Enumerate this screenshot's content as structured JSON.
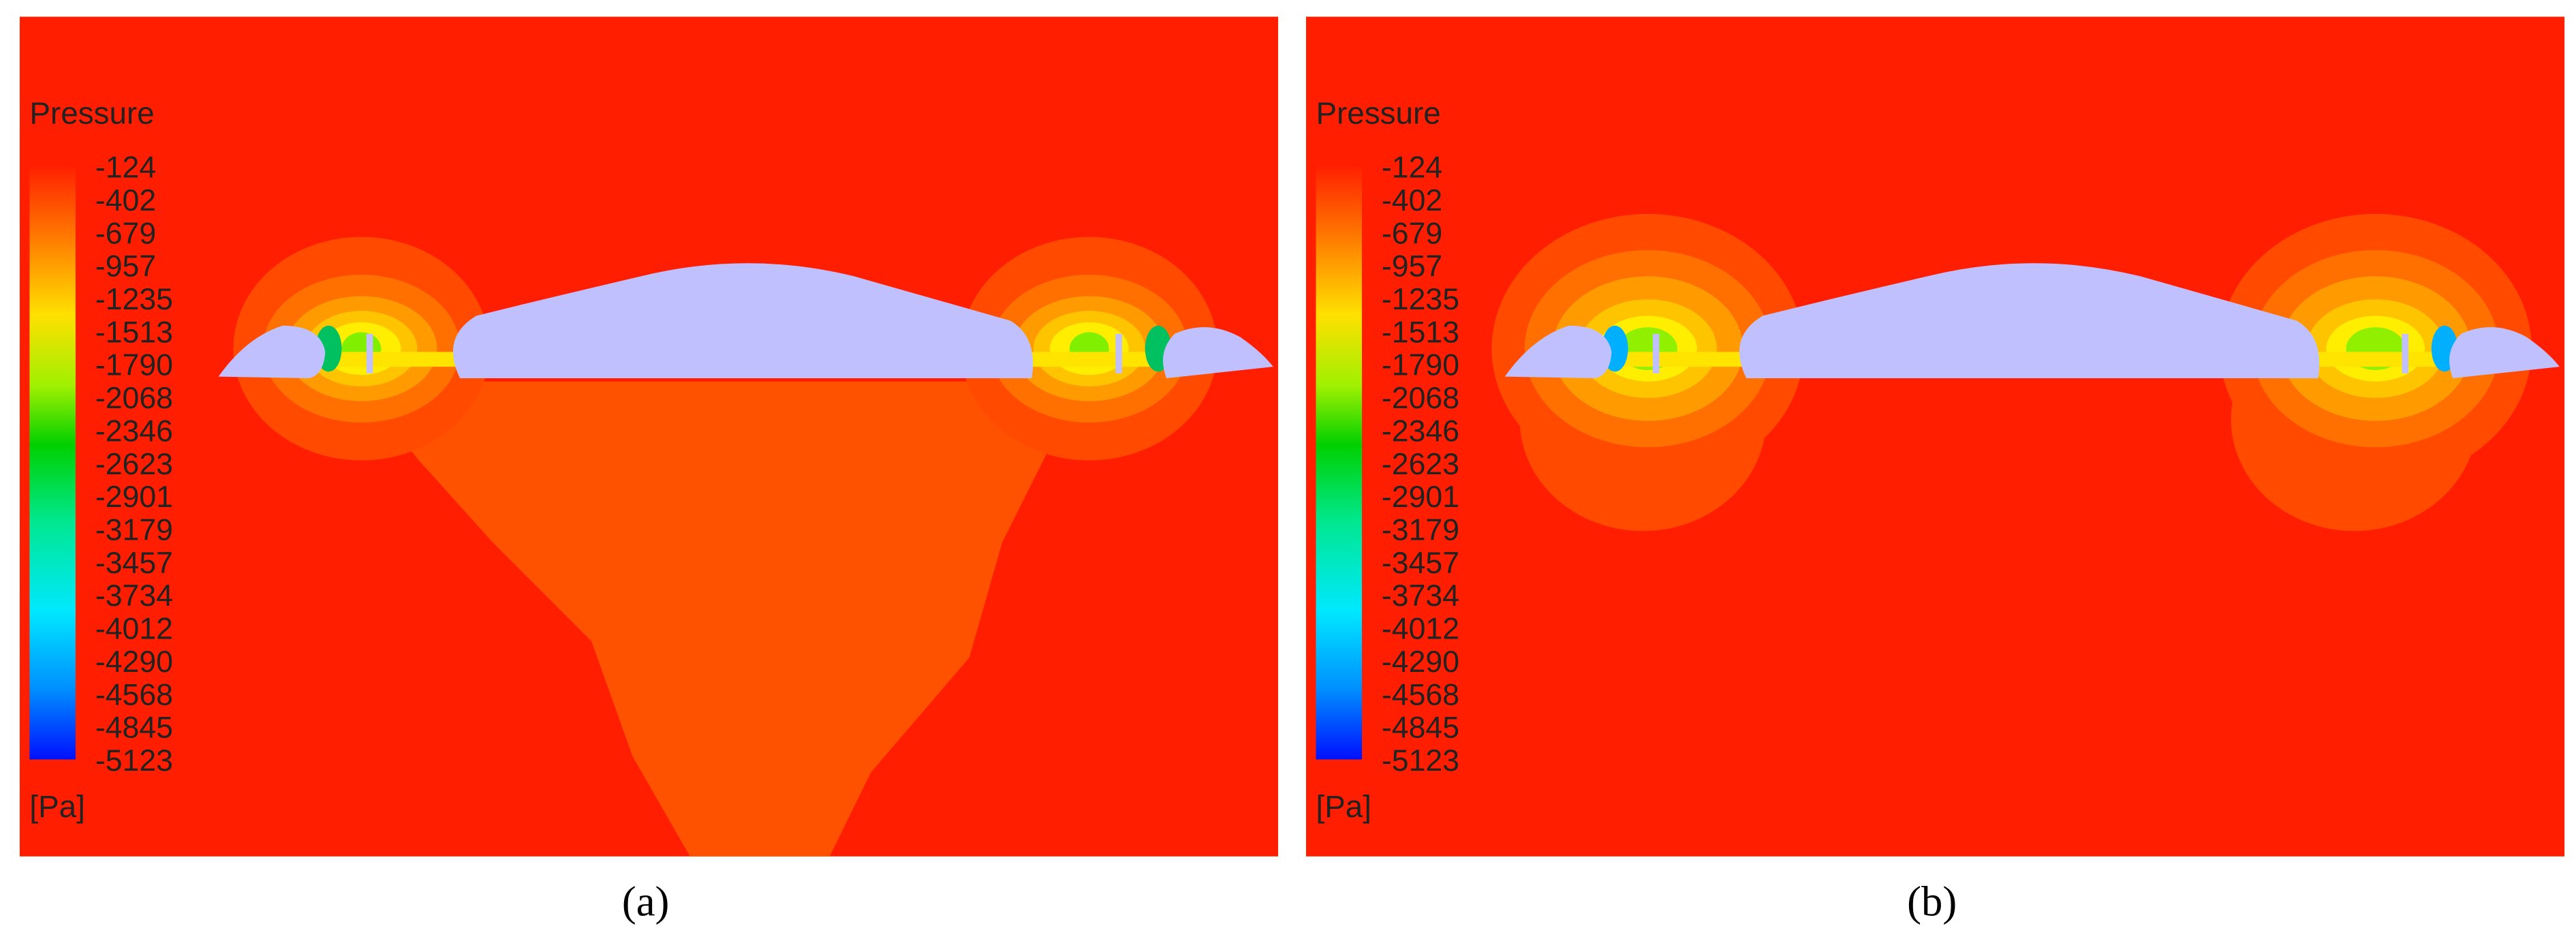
{
  "panels": [
    {
      "legend_title": "Pressure",
      "levels": [
        -124,
        -402,
        -679,
        -957,
        -1235,
        -1513,
        -1790,
        -2068,
        -2346,
        -2623,
        -2901,
        -3179,
        -3457,
        -3734,
        -4012,
        -4290,
        -4568,
        -4845,
        -5123
      ],
      "unit": "[Pa]",
      "caption": "(a)"
    },
    {
      "legend_title": "Pressure",
      "levels": [
        -124,
        -402,
        -679,
        -957,
        -1235,
        -1513,
        -1790,
        -2068,
        -2346,
        -2623,
        -2901,
        -3179,
        -3457,
        -3734,
        -4012,
        -4290,
        -4568,
        -4845,
        -5123
      ],
      "unit": "[Pa]",
      "caption": "(b)"
    }
  ]
}
